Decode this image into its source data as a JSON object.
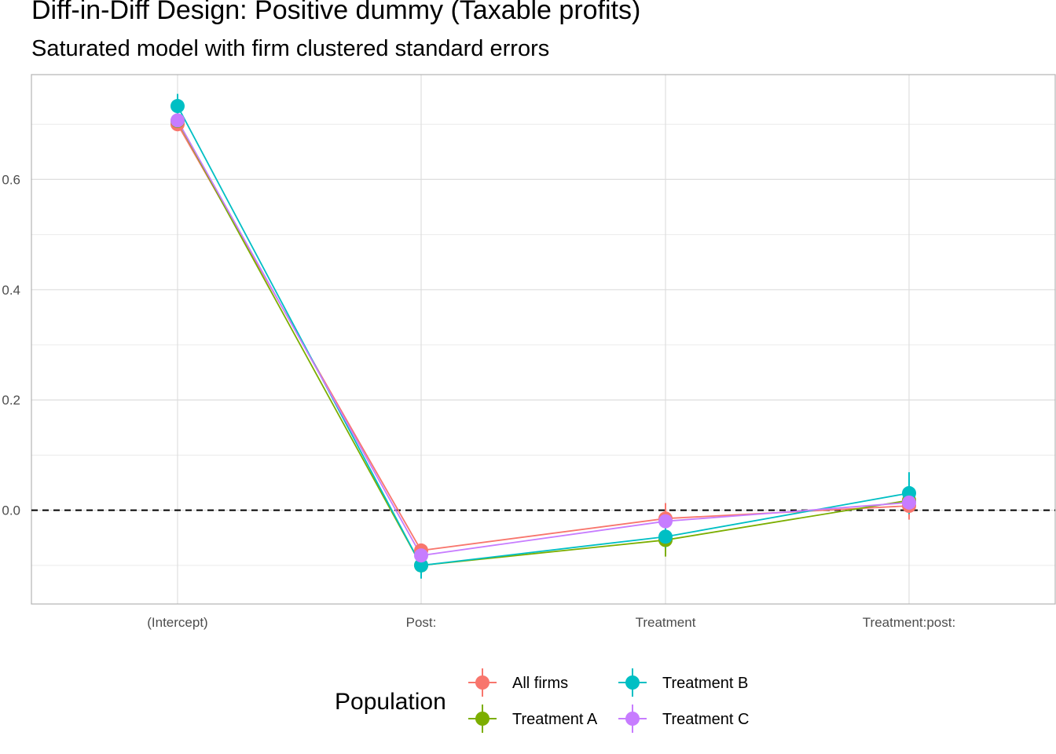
{
  "chart_data": {
    "type": "line",
    "title": "Diff-in-Diff Design: Positive dummy (Taxable profits)",
    "subtitle": "Saturated model with firm clustered standard errors",
    "xlabel": "",
    "ylabel": "",
    "categories": [
      "(Intercept)",
      "Post:",
      "Treatment",
      "Treatment:post:"
    ],
    "ylim": [
      -0.17,
      0.79
    ],
    "yticks": [
      0.0,
      0.2,
      0.4,
      0.6
    ],
    "ytick_labels": [
      "0.0",
      "0.2",
      "0.4",
      "0.6"
    ],
    "reference_line": {
      "y": 0,
      "style": "dashed",
      "color": "#000000"
    },
    "grid": true,
    "legend": {
      "title": "Population",
      "position": "bottom"
    },
    "series": [
      {
        "name": "All firms",
        "color": "#F8766D",
        "values": [
          0.7,
          -0.073,
          -0.015,
          0.008
        ],
        "error": [
          0.008,
          0.008,
          0.028,
          0.025
        ]
      },
      {
        "name": "Treatment A",
        "color": "#7CAE00",
        "values": [
          0.706,
          -0.1,
          -0.054,
          0.018
        ],
        "error": [
          0.008,
          0.008,
          0.03,
          0.02
        ]
      },
      {
        "name": "Treatment B",
        "color": "#00BFC4",
        "values": [
          0.733,
          -0.1,
          -0.048,
          0.031
        ],
        "error": [
          0.022,
          0.024,
          0.02,
          0.038
        ]
      },
      {
        "name": "Treatment C",
        "color": "#C77CFF",
        "values": [
          0.707,
          -0.082,
          -0.02,
          0.014
        ],
        "error": [
          0.008,
          0.008,
          0.01,
          0.01
        ]
      }
    ]
  }
}
